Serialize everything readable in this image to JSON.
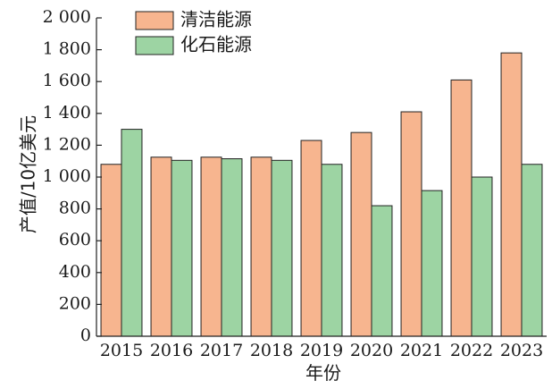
{
  "chart_data": {
    "type": "bar",
    "title": "",
    "xlabel": "年份",
    "ylabel": "产值/10亿美元",
    "categories": [
      "2015",
      "2016",
      "2017",
      "2018",
      "2019",
      "2020",
      "2021",
      "2022",
      "2023"
    ],
    "series": [
      {
        "name": "清洁能源",
        "color": "#f7b58f",
        "values": [
          1080,
          1125,
          1125,
          1125,
          1230,
          1280,
          1410,
          1610,
          1780
        ]
      },
      {
        "name": "化石能源",
        "color": "#9dd4a3",
        "values": [
          1300,
          1105,
          1115,
          1105,
          1080,
          820,
          915,
          1000,
          1080
        ]
      }
    ],
    "ylim": [
      0,
      2000
    ],
    "yticks": [
      0,
      200,
      400,
      600,
      800,
      1000,
      1200,
      1400,
      1600,
      1800,
      2000
    ],
    "ytick_labels": [
      "0",
      "200",
      "400",
      "600",
      "800",
      "1 000",
      "1 200",
      "1 400",
      "1 600",
      "1 800",
      "2 000"
    ],
    "grid": false,
    "legend_position": "top-left"
  }
}
